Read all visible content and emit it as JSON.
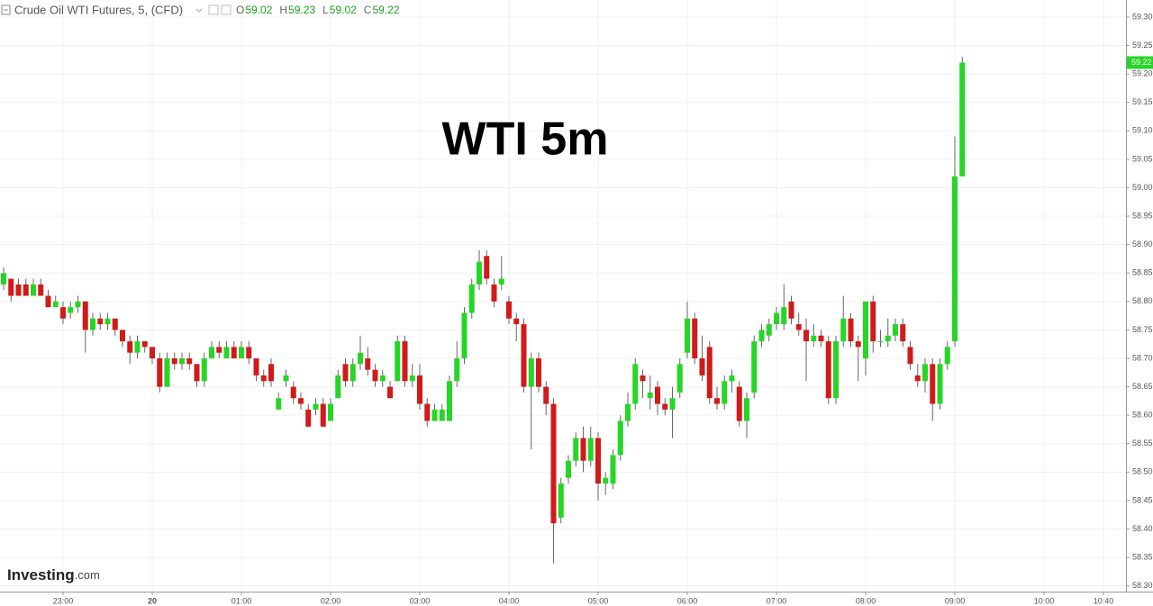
{
  "header": {
    "title": "Crude Oil WTI Futures, 5, (CFD)",
    "ohlc": [
      {
        "label": "O",
        "value": 59.02
      },
      {
        "label": "H",
        "value": 59.23
      },
      {
        "label": "L",
        "value": 59.02
      },
      {
        "label": "C",
        "value": 59.22
      }
    ]
  },
  "watermark": {
    "brand": "Investing",
    "suffix": ".com"
  },
  "chart_data": {
    "type": "candlestick",
    "annotation": "WTI 5m",
    "up_color": "#26d626",
    "down_color": "#d11a1a",
    "grid": true,
    "last_price": 59.22,
    "ylim": [
      58.29,
      59.33
    ],
    "yticks": [
      {
        "value": 58.3,
        "label": "58.30"
      },
      58.35,
      {
        "value": 58.4,
        "label": "58.40"
      },
      58.45,
      {
        "value": 58.5,
        "label": "58.50"
      },
      58.55,
      {
        "value": 58.6,
        "label": "58.60"
      },
      58.65,
      {
        "value": 58.7,
        "label": "58.70"
      },
      58.75,
      {
        "value": 58.8,
        "label": "58.80"
      },
      58.85,
      {
        "value": 58.9,
        "label": "58.90"
      },
      58.95,
      {
        "value": 59.0,
        "label": "59.00"
      },
      59.05,
      {
        "value": 59.1,
        "label": "59.10"
      },
      59.15,
      {
        "value": 59.2,
        "label": "59.20"
      },
      59.25,
      {
        "value": 59.3,
        "label": "59.30"
      }
    ],
    "categories": [
      null,
      null,
      null,
      null,
      null,
      null,
      null,
      null,
      "23:00",
      null,
      null,
      null,
      null,
      null,
      null,
      null,
      null,
      null,
      null,
      null,
      "20",
      null,
      null,
      null,
      null,
      null,
      null,
      null,
      null,
      null,
      null,
      null,
      "01:00",
      null,
      null,
      null,
      null,
      null,
      null,
      null,
      null,
      null,
      null,
      null,
      "02:00",
      null,
      null,
      null,
      null,
      null,
      null,
      null,
      null,
      null,
      null,
      null,
      "03:00",
      null,
      null,
      null,
      null,
      null,
      null,
      null,
      null,
      null,
      null,
      null,
      "04:00",
      null,
      null,
      null,
      null,
      null,
      null,
      null,
      null,
      null,
      null,
      null,
      "05:00",
      null,
      null,
      null,
      null,
      null,
      null,
      null,
      null,
      null,
      null,
      null,
      "06:00",
      null,
      null,
      null,
      null,
      null,
      null,
      null,
      null,
      null,
      null,
      null,
      "07:00",
      null,
      null,
      null,
      null,
      null,
      null,
      null,
      null,
      null,
      null,
      null,
      "08:00",
      null,
      null,
      null,
      null,
      null,
      null,
      null,
      null,
      null,
      null,
      null,
      "09:00",
      null,
      null,
      null,
      null,
      null,
      null,
      null,
      null,
      null,
      null,
      null,
      "10:00",
      null,
      null,
      null,
      null,
      null,
      null,
      null,
      "10:40"
    ],
    "ohlc": [
      [
        58.83,
        58.86,
        58.82,
        58.85
      ],
      [
        58.84,
        58.84,
        58.8,
        58.81
      ],
      [
        58.83,
        58.84,
        58.81,
        58.81
      ],
      [
        58.83,
        58.84,
        58.81,
        58.81
      ],
      [
        58.81,
        58.84,
        58.81,
        58.83
      ],
      [
        58.83,
        58.84,
        58.81,
        58.81
      ],
      [
        58.81,
        58.82,
        58.79,
        58.79
      ],
      [
        58.79,
        58.81,
        58.79,
        58.8
      ],
      [
        58.79,
        58.8,
        58.76,
        58.77
      ],
      [
        58.78,
        58.8,
        58.77,
        58.79
      ],
      [
        58.79,
        58.81,
        58.78,
        58.8
      ],
      [
        58.8,
        58.8,
        58.71,
        58.75
      ],
      [
        58.75,
        58.78,
        58.74,
        58.77
      ],
      [
        58.77,
        58.78,
        58.75,
        58.76
      ],
      [
        58.76,
        58.78,
        58.75,
        58.77
      ],
      [
        58.77,
        58.77,
        58.74,
        58.75
      ],
      [
        58.75,
        58.75,
        58.72,
        58.73
      ],
      [
        58.73,
        58.74,
        58.69,
        58.71
      ],
      [
        58.71,
        58.74,
        58.7,
        58.73
      ],
      [
        58.73,
        58.73,
        58.71,
        58.72
      ],
      [
        58.72,
        58.72,
        58.69,
        58.7
      ],
      [
        58.7,
        58.71,
        58.64,
        58.65
      ],
      [
        58.65,
        58.71,
        58.65,
        58.7
      ],
      [
        58.7,
        58.71,
        58.68,
        58.69
      ],
      [
        58.69,
        58.71,
        58.68,
        58.7
      ],
      [
        58.7,
        58.71,
        58.68,
        58.69
      ],
      [
        58.69,
        58.69,
        58.65,
        58.66
      ],
      [
        58.66,
        58.71,
        58.65,
        58.7
      ],
      [
        58.7,
        58.73,
        58.7,
        58.72
      ],
      [
        58.72,
        58.73,
        58.7,
        58.71
      ],
      [
        58.7,
        58.73,
        58.7,
        58.72
      ],
      [
        58.72,
        58.73,
        58.7,
        58.7
      ],
      [
        58.7,
        58.73,
        58.7,
        58.72
      ],
      [
        58.72,
        58.73,
        58.69,
        58.7
      ],
      [
        58.7,
        58.7,
        58.66,
        58.67
      ],
      [
        58.67,
        58.68,
        58.65,
        58.66
      ],
      [
        58.69,
        58.7,
        58.65,
        58.66
      ],
      [
        58.61,
        58.64,
        58.61,
        58.63
      ],
      [
        58.66,
        58.68,
        58.65,
        58.67
      ],
      [
        58.65,
        58.66,
        58.62,
        58.63
      ],
      [
        58.63,
        58.64,
        58.61,
        58.62
      ],
      [
        58.61,
        58.62,
        58.58,
        58.58
      ],
      [
        58.61,
        58.63,
        58.6,
        58.62
      ],
      [
        58.62,
        58.63,
        58.58,
        58.58
      ],
      [
        58.59,
        58.63,
        58.59,
        58.62
      ],
      [
        58.63,
        58.68,
        58.63,
        58.67
      ],
      [
        58.69,
        58.7,
        58.65,
        58.66
      ],
      [
        58.66,
        58.7,
        58.65,
        58.69
      ],
      [
        58.69,
        58.74,
        58.68,
        58.71
      ],
      [
        58.7,
        58.72,
        58.67,
        58.68
      ],
      [
        58.68,
        58.69,
        58.65,
        58.66
      ],
      [
        58.66,
        58.68,
        58.65,
        58.67
      ],
      [
        58.65,
        58.66,
        58.63,
        58.63
      ],
      [
        58.66,
        58.74,
        58.66,
        58.73
      ],
      [
        58.73,
        58.74,
        58.65,
        58.66
      ],
      [
        58.66,
        58.69,
        58.65,
        58.67
      ],
      [
        58.67,
        58.69,
        58.61,
        58.62
      ],
      [
        58.62,
        58.63,
        58.58,
        58.59
      ],
      [
        58.59,
        58.62,
        58.59,
        58.61
      ],
      [
        58.59,
        58.62,
        58.59,
        58.61
      ],
      [
        58.59,
        58.67,
        58.59,
        58.66
      ],
      [
        58.66,
        58.73,
        58.65,
        58.7
      ],
      [
        58.7,
        58.79,
        58.69,
        58.78
      ],
      [
        58.78,
        58.84,
        58.77,
        58.83
      ],
      [
        58.83,
        58.89,
        58.82,
        58.87
      ],
      [
        58.88,
        58.89,
        58.83,
        58.84
      ],
      [
        58.83,
        58.84,
        58.79,
        58.8
      ],
      [
        58.83,
        58.88,
        58.82,
        58.84
      ],
      [
        58.8,
        58.81,
        58.76,
        58.77
      ],
      [
        58.77,
        58.78,
        58.73,
        58.76
      ],
      [
        58.76,
        58.77,
        58.64,
        58.65
      ],
      [
        58.65,
        58.71,
        58.54,
        58.7
      ],
      [
        58.7,
        58.71,
        58.64,
        58.65
      ],
      [
        58.65,
        58.66,
        58.6,
        58.62
      ],
      [
        58.62,
        58.63,
        58.34,
        58.41
      ],
      [
        58.42,
        58.49,
        58.41,
        58.48
      ],
      [
        58.49,
        58.53,
        58.48,
        58.52
      ],
      [
        58.52,
        58.57,
        58.51,
        58.56
      ],
      [
        58.56,
        58.58,
        58.5,
        58.52
      ],
      [
        58.52,
        58.58,
        58.51,
        58.56
      ],
      [
        58.56,
        58.57,
        58.45,
        58.48
      ],
      [
        58.48,
        58.5,
        58.46,
        58.49
      ],
      [
        58.48,
        58.54,
        58.47,
        58.53
      ],
      [
        58.53,
        58.6,
        58.52,
        58.59
      ],
      [
        58.59,
        58.64,
        58.58,
        58.62
      ],
      [
        58.62,
        58.7,
        58.61,
        58.69
      ],
      [
        58.67,
        58.68,
        58.63,
        58.66
      ],
      [
        58.63,
        58.67,
        58.61,
        58.64
      ],
      [
        58.65,
        58.66,
        58.6,
        58.62
      ],
      [
        58.62,
        58.63,
        58.6,
        58.61
      ],
      [
        58.61,
        58.65,
        58.56,
        58.63
      ],
      [
        58.64,
        58.7,
        58.63,
        58.69
      ],
      [
        58.71,
        58.8,
        58.7,
        58.77
      ],
      [
        58.77,
        58.78,
        58.69,
        58.7
      ],
      [
        58.7,
        58.74,
        58.66,
        58.67
      ],
      [
        58.72,
        58.73,
        58.62,
        58.63
      ],
      [
        58.63,
        58.65,
        58.61,
        58.62
      ],
      [
        58.62,
        58.67,
        58.61,
        58.66
      ],
      [
        58.66,
        58.68,
        58.64,
        58.67
      ],
      [
        58.65,
        58.66,
        58.58,
        58.59
      ],
      [
        58.59,
        58.64,
        58.56,
        58.63
      ],
      [
        58.64,
        58.74,
        58.63,
        58.73
      ],
      [
        58.73,
        58.76,
        58.72,
        58.75
      ],
      [
        58.74,
        58.77,
        58.73,
        58.76
      ],
      [
        58.76,
        58.79,
        58.75,
        58.78
      ],
      [
        58.76,
        58.83,
        58.75,
        58.79
      ],
      [
        58.8,
        58.81,
        58.76,
        58.77
      ],
      [
        58.76,
        58.78,
        58.74,
        58.75
      ],
      [
        58.75,
        58.77,
        58.66,
        58.73
      ],
      [
        58.73,
        58.76,
        58.72,
        58.74
      ],
      [
        58.74,
        58.75,
        58.72,
        58.73
      ],
      [
        58.73,
        58.74,
        58.62,
        58.63
      ],
      [
        58.63,
        58.74,
        58.62,
        58.73
      ],
      [
        58.73,
        58.81,
        58.72,
        58.77
      ],
      [
        58.77,
        58.78,
        58.72,
        58.73
      ],
      [
        58.73,
        58.74,
        58.66,
        58.72
      ],
      [
        58.7,
        58.8,
        58.67,
        58.8
      ],
      [
        58.8,
        58.81,
        58.71,
        58.73
      ],
      [
        58.73,
        58.75,
        58.72,
        58.73
      ],
      [
        58.73,
        58.77,
        58.72,
        58.74
      ],
      [
        58.74,
        58.77,
        58.73,
        58.76
      ],
      [
        58.76,
        58.77,
        58.72,
        58.73
      ],
      [
        58.72,
        58.73,
        58.68,
        58.69
      ],
      [
        58.67,
        58.69,
        58.65,
        58.66
      ],
      [
        58.66,
        58.7,
        58.64,
        58.69
      ],
      [
        58.69,
        58.7,
        58.59,
        58.62
      ],
      [
        58.62,
        58.7,
        58.61,
        58.69
      ],
      [
        58.69,
        58.73,
        58.68,
        58.72
      ],
      [
        58.73,
        59.09,
        58.72,
        59.02
      ],
      [
        59.02,
        59.23,
        59.02,
        59.22
      ],
      null,
      null,
      null,
      null,
      null,
      null,
      null,
      null,
      null,
      null,
      null,
      null,
      null,
      null,
      null,
      null,
      null,
      null,
      null
    ]
  }
}
